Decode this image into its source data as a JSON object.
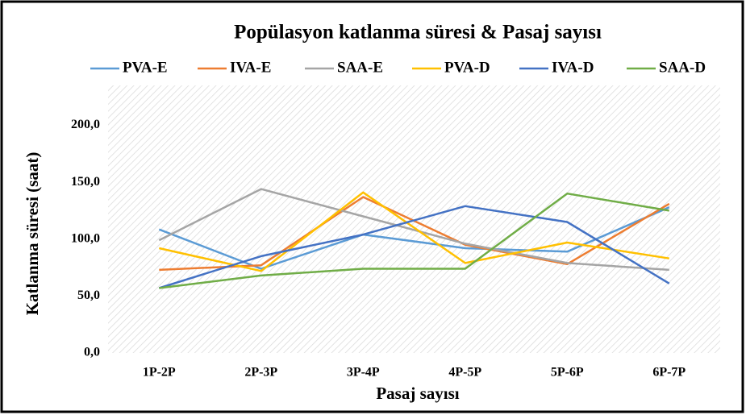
{
  "chart_data": {
    "type": "line",
    "title": "Popülasyon katlanma süresi & Pasaj sayısı",
    "x_label": "Pasaj sayısı",
    "y_label": "Katlanma süresi (saat)",
    "categories": [
      "1P-2P",
      "2P-3P",
      "3P-4P",
      "4P-5P",
      "5P-6P",
      "6P-7P"
    ],
    "series": [
      {
        "name": "PVA-E",
        "color": "#5b9bd5",
        "values": [
          108.5,
          74,
          104,
          92,
          89,
          128
        ]
      },
      {
        "name": "IVA-E",
        "color": "#ed7d31",
        "values": [
          73,
          77,
          137,
          95,
          78,
          131
        ]
      },
      {
        "name": "SAA-E",
        "color": "#a5a5a5",
        "values": [
          99,
          144,
          120,
          96,
          79,
          73
        ]
      },
      {
        "name": "PVA-D",
        "color": "#ffc000",
        "values": [
          92,
          72,
          141,
          79,
          97,
          83
        ]
      },
      {
        "name": "IVA-D",
        "color": "#4472c4",
        "values": [
          57,
          85,
          104,
          129,
          115,
          61
        ]
      },
      {
        "name": "SAA-D",
        "color": "#70ad47",
        "values": [
          57,
          68,
          74,
          74,
          140,
          125
        ]
      }
    ],
    "ylim": [
      0,
      235
    ],
    "yticks": [
      {
        "value": 0,
        "label": "0,0"
      },
      {
        "value": 50,
        "label": "50,0"
      },
      {
        "value": 100,
        "label": "100,0"
      },
      {
        "value": 150,
        "label": "150,0"
      },
      {
        "value": 200,
        "label": "200,0"
      }
    ],
    "legend": "top"
  }
}
